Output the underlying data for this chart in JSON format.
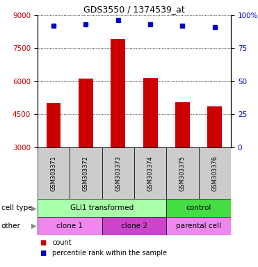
{
  "title": "GDS3550 / 1374539_at",
  "samples": [
    "GSM303371",
    "GSM303372",
    "GSM303373",
    "GSM303374",
    "GSM303375",
    "GSM303376"
  ],
  "bar_values": [
    5000,
    6100,
    7900,
    6150,
    5050,
    4850
  ],
  "percentile_values": [
    92,
    93,
    96,
    93,
    92,
    91
  ],
  "ylim_left": [
    3000,
    9000
  ],
  "ylim_right": [
    0,
    100
  ],
  "yticks_left": [
    3000,
    4500,
    6000,
    7500,
    9000
  ],
  "yticks_right": [
    0,
    25,
    50,
    75,
    100
  ],
  "bar_color": "#cc0000",
  "dot_color": "#0000cc",
  "bar_width": 0.45,
  "cell_type_groups": [
    {
      "label": "GLI1 transformed",
      "start": 0,
      "end": 4,
      "color": "#aaffaa"
    },
    {
      "label": "control",
      "start": 4,
      "end": 6,
      "color": "#44dd44"
    }
  ],
  "other_groups": [
    {
      "label": "clone 1",
      "start": 0,
      "end": 2,
      "color": "#ee88ee"
    },
    {
      "label": "clone 2",
      "start": 2,
      "end": 4,
      "color": "#cc44cc"
    },
    {
      "label": "parental cell",
      "start": 4,
      "end": 6,
      "color": "#ee88ee"
    }
  ],
  "left_label": "cell type",
  "other_label": "other",
  "legend_count_label": "count",
  "legend_percentile_label": "percentile rank within the sample",
  "bg_color": "#cccccc",
  "left_axis_color": "#cc0000",
  "right_axis_color": "#0000cc"
}
